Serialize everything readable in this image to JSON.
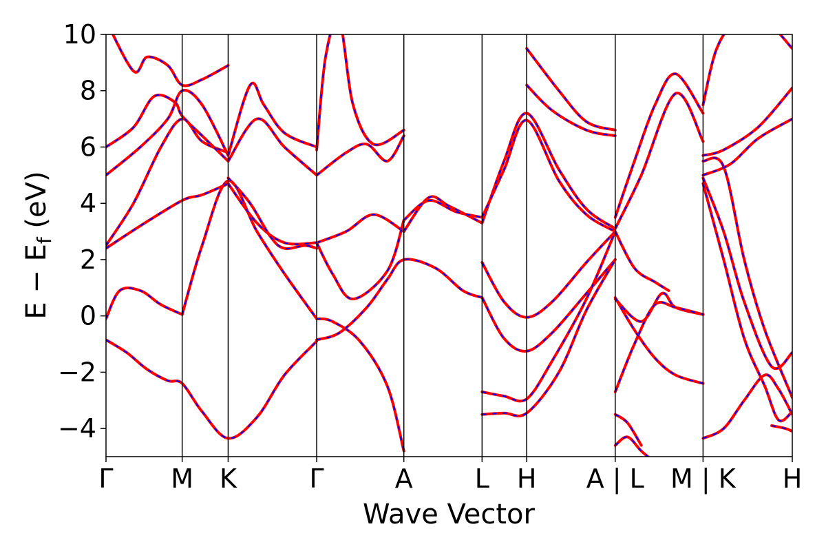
{
  "chart_data": {
    "type": "line",
    "title": "",
    "xlabel": "Wave Vector",
    "ylabel": "E − E",
    "ylabel_subscript": "f",
    "ylabel_unit": " (eV)",
    "ylim": [
      -5,
      10
    ],
    "yticks": [
      {
        "value": 10,
        "label": "10"
      },
      {
        "value": 8,
        "label": "8"
      },
      {
        "value": 6,
        "label": "6"
      },
      {
        "value": 4,
        "label": "4"
      },
      {
        "value": 2,
        "label": "2"
      },
      {
        "value": 0,
        "label": "0"
      },
      {
        "value": -2,
        "label": "−2"
      },
      {
        "value": -4,
        "label": "−4"
      }
    ],
    "kpath": [
      "Γ",
      "M",
      "K",
      "Γ",
      "A",
      "L",
      "H",
      "A | L",
      "M | K",
      "H"
    ],
    "kpoint_positions": [
      0,
      0.111,
      0.178,
      0.307,
      0.434,
      0.548,
      0.613,
      0.742,
      0.87,
      1.0
    ],
    "kpath_breaks": [
      7,
      8
    ],
    "grid": false,
    "legend": "none",
    "series_colors": {
      "primary": "#ff0000",
      "secondary": "#0000ff"
    },
    "bands": [
      {
        "x": [
          0,
          0.03,
          0.06,
          0.09,
          0.111,
          0.14,
          0.178,
          0.22,
          0.26,
          0.307
        ],
        "y": [
          -0.85,
          -1.3,
          -1.9,
          -2.3,
          -2.4,
          -3.4,
          -4.35,
          -3.6,
          -2.1,
          -0.9
        ]
      },
      {
        "x": [
          0,
          0.02,
          0.05,
          0.08,
          0.111
        ],
        "y": [
          -0.1,
          0.9,
          0.9,
          0.4,
          0.05
        ]
      },
      {
        "x": [
          0.111,
          0.14,
          0.178,
          0.22,
          0.26,
          0.307
        ],
        "y": [
          0.05,
          2.5,
          4.8,
          3.0,
          1.5,
          -0.1
        ]
      },
      {
        "x": [
          0.307,
          0.33,
          0.37,
          0.41,
          0.434
        ],
        "y": [
          -0.1,
          -0.2,
          -0.9,
          -2.5,
          -4.8
        ]
      },
      {
        "x": [
          0.307,
          0.34,
          0.38,
          0.41,
          0.434,
          0.48,
          0.52,
          0.548
        ],
        "y": [
          -0.85,
          -0.6,
          0.3,
          1.3,
          2.0,
          1.7,
          0.9,
          0.65
        ]
      },
      {
        "x": [
          0.548,
          0.58,
          0.613,
          0.65,
          0.7,
          0.742
        ],
        "y": [
          0.65,
          -0.8,
          -1.25,
          -0.6,
          0.8,
          2.0
        ]
      },
      {
        "x": [
          0.548,
          0.58,
          0.613,
          0.65,
          0.7,
          0.742
        ],
        "y": [
          -2.7,
          -2.85,
          -2.95,
          -1.6,
          0.6,
          3.0
        ]
      },
      {
        "x": [
          0.548,
          0.58,
          0.613,
          0.66,
          0.7,
          0.742
        ],
        "y": [
          -3.5,
          -3.45,
          -3.45,
          -2.0,
          0.2,
          2.0
        ]
      },
      {
        "x": [
          0.548,
          0.58,
          0.613,
          0.65,
          0.7,
          0.742
        ],
        "y": [
          1.9,
          0.5,
          -0.05,
          0.5,
          1.9,
          3.0
        ]
      },
      {
        "x": [
          0.434,
          0.47,
          0.5,
          0.548
        ],
        "y": [
          3.0,
          4.2,
          3.9,
          3.3
        ]
      },
      {
        "x": [
          0.434,
          0.47,
          0.51,
          0.548
        ],
        "y": [
          3.4,
          4.1,
          3.7,
          3.5
        ]
      },
      {
        "x": [
          0.307,
          0.35,
          0.39,
          0.434
        ],
        "y": [
          2.6,
          3.0,
          3.6,
          3.0
        ]
      },
      {
        "x": [
          0.307,
          0.33,
          0.36,
          0.41,
          0.434
        ],
        "y": [
          2.6,
          1.5,
          0.6,
          1.6,
          3.4
        ]
      },
      {
        "x": [
          0.548,
          0.58,
          0.613,
          0.66,
          0.7,
          0.742
        ],
        "y": [
          3.3,
          5.5,
          7.2,
          5.2,
          3.8,
          3.1
        ]
      },
      {
        "x": [
          0.548,
          0.58,
          0.613,
          0.66,
          0.7,
          0.742
        ],
        "y": [
          3.5,
          5.2,
          6.95,
          4.8,
          3.6,
          3.0
        ]
      },
      {
        "x": [
          0,
          0.04,
          0.08,
          0.111,
          0.14,
          0.178
        ],
        "y": [
          2.5,
          4.0,
          6.0,
          7.0,
          6.2,
          5.8
        ]
      },
      {
        "x": [
          0,
          0.05,
          0.111,
          0.14,
          0.178
        ],
        "y": [
          2.4,
          3.2,
          4.1,
          4.3,
          4.7
        ]
      },
      {
        "x": [
          0.178,
          0.22,
          0.26,
          0.307
        ],
        "y": [
          4.7,
          3.3,
          2.6,
          2.6
        ]
      },
      {
        "x": [
          0.178,
          0.21,
          0.24,
          0.26,
          0.29,
          0.307
        ],
        "y": [
          4.9,
          4.0,
          2.8,
          2.4,
          2.5,
          2.4
        ]
      },
      {
        "x": [
          0,
          0.04,
          0.07,
          0.1,
          0.111,
          0.14,
          0.178
        ],
        "y": [
          6.0,
          6.7,
          7.8,
          7.6,
          7.1,
          6.4,
          5.5
        ]
      },
      {
        "x": [
          0,
          0.05,
          0.09,
          0.111,
          0.14,
          0.178
        ],
        "y": [
          5.0,
          6.0,
          7.0,
          8.0,
          7.5,
          5.7
        ]
      },
      {
        "x": [
          0.178,
          0.22,
          0.26,
          0.307
        ],
        "y": [
          5.5,
          7.0,
          6.0,
          5.0
        ]
      },
      {
        "x": [
          0.178,
          0.21,
          0.23,
          0.26,
          0.307
        ],
        "y": [
          5.7,
          8.2,
          7.5,
          6.5,
          6.0
        ]
      },
      {
        "x": [
          0.307,
          0.35,
          0.38,
          0.41,
          0.434
        ],
        "y": [
          5.0,
          5.8,
          6.1,
          5.5,
          6.4
        ]
      },
      {
        "x": [
          0.307,
          0.32,
          0.34,
          0.36,
          0.39,
          0.434
        ],
        "y": [
          5.9,
          9.2,
          10.5,
          7.5,
          6.1,
          6.6
        ]
      },
      {
        "x": [
          0.0,
          0.04,
          0.06,
          0.09,
          0.111,
          0.14,
          0.178
        ],
        "y": [
          10.5,
          8.7,
          9.2,
          8.9,
          8.2,
          8.4,
          8.9
        ]
      },
      {
        "x": [
          0.742,
          0.77,
          0.8,
          0.83,
          0.87
        ],
        "y": [
          3.5,
          5.5,
          7.5,
          8.6,
          7.2
        ]
      },
      {
        "x": [
          0.742,
          0.78,
          0.83,
          0.87
        ],
        "y": [
          3.1,
          5.0,
          7.9,
          6.2
        ]
      },
      {
        "x": [
          0.742,
          0.77,
          0.8,
          0.82
        ],
        "y": [
          3.0,
          1.7,
          1.2,
          0.9
        ]
      },
      {
        "x": [
          0.742,
          0.78,
          0.81,
          0.83,
          0.87
        ],
        "y": [
          0.6,
          -0.2,
          0.8,
          0.3,
          0.05
        ]
      },
      {
        "x": [
          0.742,
          0.77,
          0.8,
          0.83,
          0.87
        ],
        "y": [
          -2.7,
          -1.0,
          0.4,
          0.3,
          0.05
        ]
      },
      {
        "x": [
          0.742,
          0.77,
          0.8,
          0.83,
          0.87
        ],
        "y": [
          0.65,
          -0.5,
          -1.5,
          -2.1,
          -2.4
        ]
      },
      {
        "x": [
          0.742,
          0.76,
          0.78
        ],
        "y": [
          -3.5,
          -3.8,
          -4.6
        ]
      },
      {
        "x": [
          0.742,
          0.76,
          0.78,
          0.8
        ],
        "y": [
          -4.6,
          -4.3,
          -4.8,
          -5.2
        ]
      },
      {
        "x": [
          0.87,
          0.9,
          0.93,
          0.96,
          0.98,
          1.0
        ],
        "y": [
          -4.35,
          -4.0,
          -3.0,
          -2.1,
          -2.6,
          -3.5
        ]
      },
      {
        "x": [
          0.87,
          0.9,
          0.93,
          0.96,
          0.98,
          1.0
        ],
        "y": [
          4.7,
          2.0,
          -0.8,
          -2.5,
          -3.7,
          -3.4
        ]
      },
      {
        "x": [
          0.87,
          0.9,
          0.93,
          0.97,
          1.0
        ],
        "y": [
          4.9,
          3.0,
          0.5,
          -1.8,
          -1.3
        ]
      },
      {
        "x": [
          0.87,
          0.9,
          0.93,
          0.96,
          1.0
        ],
        "y": [
          5.5,
          5.3,
          2.0,
          -0.5,
          -2.9
        ]
      },
      {
        "x": [
          0.87,
          0.91,
          0.95,
          1.0
        ],
        "y": [
          5.0,
          5.4,
          6.3,
          7.0
        ]
      },
      {
        "x": [
          0.87,
          0.9,
          0.95,
          1.0
        ],
        "y": [
          5.7,
          5.9,
          6.7,
          8.1
        ]
      },
      {
        "x": [
          0.87,
          0.89,
          0.92,
          0.96,
          1.0
        ],
        "y": [
          7.5,
          9.5,
          10.5,
          10.5,
          9.5
        ]
      },
      {
        "x": [
          0.97,
          0.99,
          1.0
        ],
        "y": [
          -3.9,
          -4.0,
          -4.1
        ]
      },
      {
        "x": [
          0.613,
          0.65,
          0.7,
          0.742
        ],
        "y": [
          8.2,
          7.3,
          6.6,
          6.4
        ]
      },
      {
        "x": [
          0.613,
          0.66,
          0.7,
          0.742
        ],
        "y": [
          9.5,
          8.0,
          6.9,
          6.6
        ]
      }
    ]
  }
}
